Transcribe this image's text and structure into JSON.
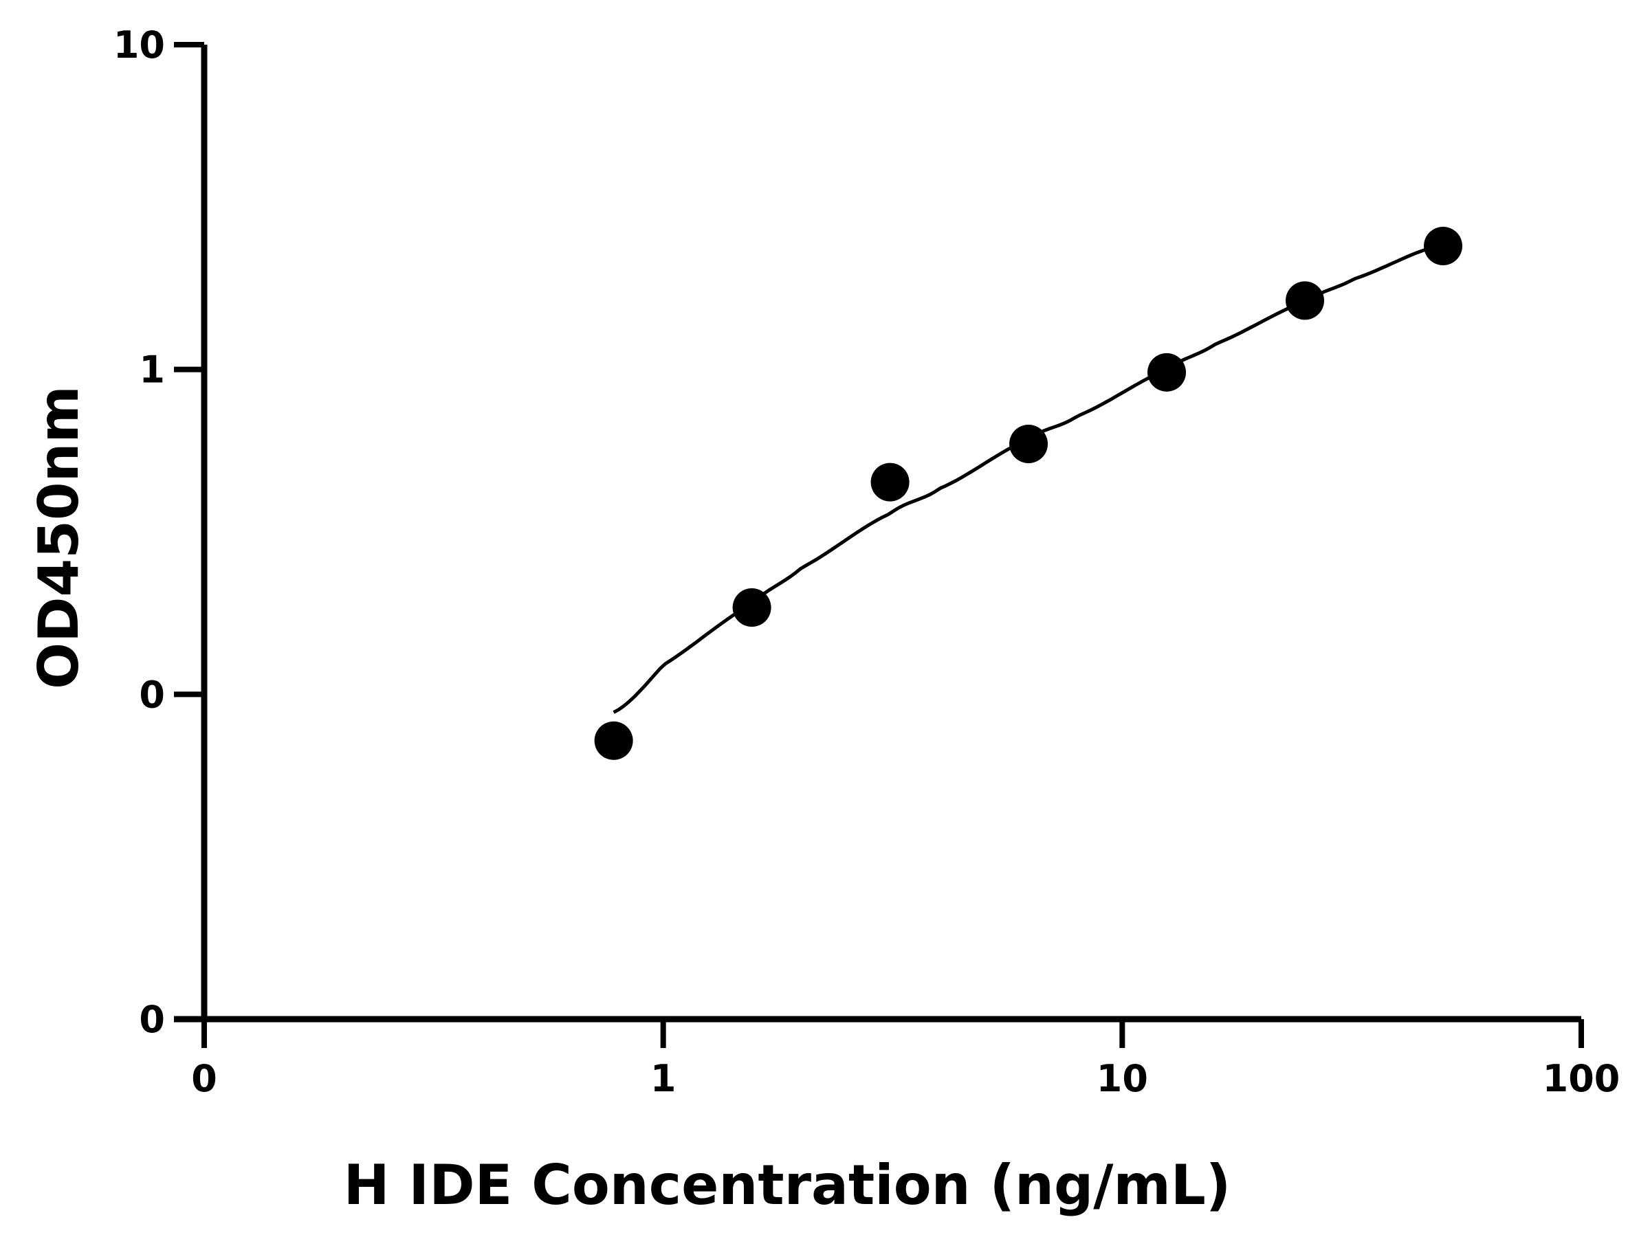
{
  "chart_data": {
    "type": "scatter",
    "xlabel": "H IDE Concentration (ng/mL)",
    "ylabel": "OD450nm",
    "x_scale": "log",
    "y_scale": "log",
    "x_ticks": [
      {
        "value": 0.1,
        "label": "0"
      },
      {
        "value": 1,
        "label": "1"
      },
      {
        "value": 10,
        "label": "10"
      },
      {
        "value": 100,
        "label": "100"
      }
    ],
    "y_ticks": [
      {
        "value": 0.01,
        "label": "0"
      },
      {
        "value": 0.1,
        "label": "0"
      },
      {
        "value": 1,
        "label": "1"
      },
      {
        "value": 10,
        "label": "10"
      }
    ],
    "xlim": [
      0.1,
      100
    ],
    "ylim": [
      0.01,
      10
    ],
    "grid": false,
    "legend": "none",
    "series": [
      {
        "points": [
          {
            "x": 0.78,
            "y": 0.072
          },
          {
            "x": 1.56,
            "y": 0.185
          },
          {
            "x": 3.12,
            "y": 0.45
          },
          {
            "x": 6.25,
            "y": 0.59
          },
          {
            "x": 12.5,
            "y": 0.98
          },
          {
            "x": 25,
            "y": 1.63
          },
          {
            "x": 50,
            "y": 2.4
          }
        ],
        "color": "#000000"
      }
    ],
    "fit_curve": {
      "points": [
        {
          "x": 0.78,
          "y": 0.088
        },
        {
          "x": 1.0,
          "y": 0.123
        },
        {
          "x": 1.56,
          "y": 0.19
        },
        {
          "x": 2.0,
          "y": 0.245
        },
        {
          "x": 3.12,
          "y": 0.36
        },
        {
          "x": 4.0,
          "y": 0.43
        },
        {
          "x": 6.25,
          "y": 0.61
        },
        {
          "x": 8.0,
          "y": 0.72
        },
        {
          "x": 12.5,
          "y": 1.0
        },
        {
          "x": 16.0,
          "y": 1.2
        },
        {
          "x": 25,
          "y": 1.62
        },
        {
          "x": 32,
          "y": 1.9
        },
        {
          "x": 50,
          "y": 2.42
        }
      ],
      "color": "#000000"
    }
  }
}
